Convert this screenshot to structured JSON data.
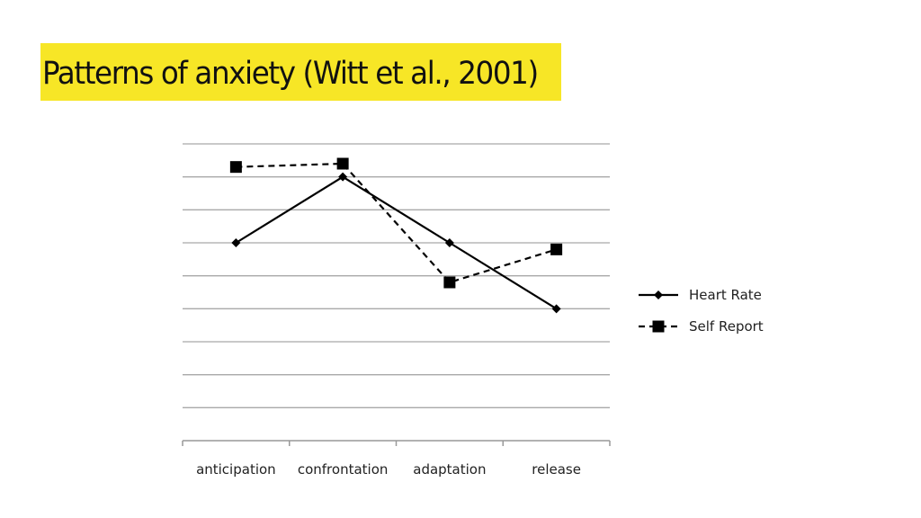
{
  "slide": {
    "title": "Patterns of anxiety (Witt et al., 2001)",
    "title_bg": "#f7e626"
  },
  "chart_data": {
    "type": "line",
    "categories": [
      "anticipation",
      "confrontation",
      "adaptation",
      "release"
    ],
    "series": [
      {
        "name": "Heart Rate",
        "values": [
          6,
          8,
          6,
          4
        ],
        "line_style": "solid",
        "marker": "diamond",
        "color": "#000000"
      },
      {
        "name": "Self Report",
        "values": [
          8.3,
          8.4,
          4.8,
          5.8
        ],
        "line_style": "dashed",
        "marker": "square",
        "color": "#000000"
      }
    ],
    "ylim": [
      0,
      9
    ],
    "grid": true,
    "legend": "right"
  }
}
